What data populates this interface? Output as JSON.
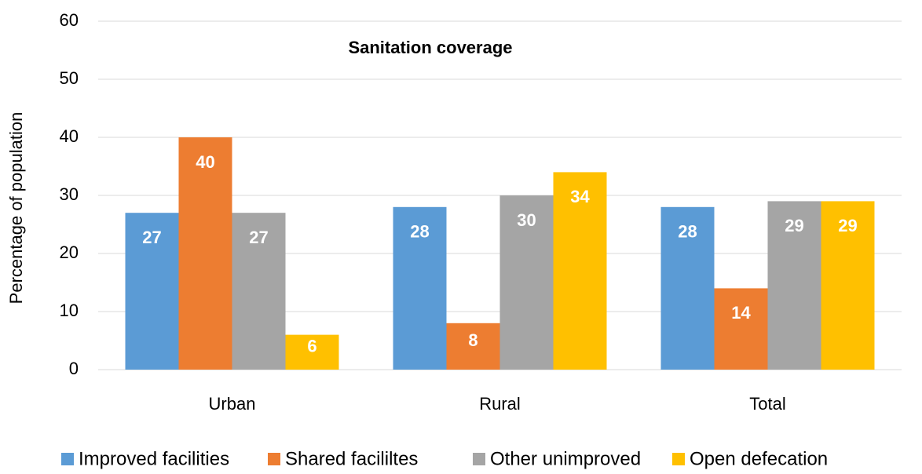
{
  "chart_data": {
    "type": "bar",
    "title": "Sanitation coverage",
    "y_label": "Percentage  of population",
    "categories": [
      "Urban",
      "Rural",
      "Total"
    ],
    "series": [
      {
        "name": "Improved facilities",
        "color": "#5b9bd5",
        "values": [
          27,
          28,
          28
        ]
      },
      {
        "name": "Shared facililtes",
        "color": "#ed7d31",
        "values": [
          40,
          8,
          14
        ]
      },
      {
        "name": "Other unimproved",
        "color": "#a5a5a5",
        "values": [
          27,
          30,
          29
        ]
      },
      {
        "name": "Open defecation",
        "color": "#ffc000",
        "values": [
          6,
          34,
          29
        ]
      }
    ],
    "ylim": [
      0,
      60
    ],
    "yticks": [
      0,
      10,
      20,
      30,
      40,
      50,
      60
    ],
    "grid": true,
    "legend": "bottom"
  }
}
